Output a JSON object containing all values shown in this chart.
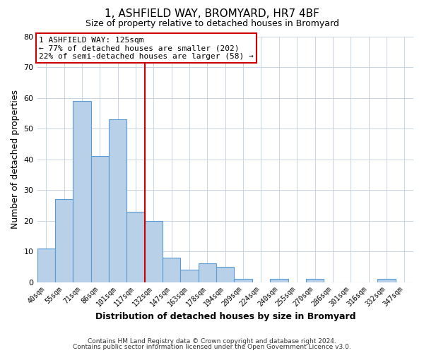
{
  "title": "1, ASHFIELD WAY, BROMYARD, HR7 4BF",
  "subtitle": "Size of property relative to detached houses in Bromyard",
  "xlabel": "Distribution of detached houses by size in Bromyard",
  "ylabel": "Number of detached properties",
  "bar_labels": [
    "40sqm",
    "55sqm",
    "71sqm",
    "86sqm",
    "101sqm",
    "117sqm",
    "132sqm",
    "147sqm",
    "163sqm",
    "178sqm",
    "194sqm",
    "209sqm",
    "224sqm",
    "240sqm",
    "255sqm",
    "270sqm",
    "286sqm",
    "301sqm",
    "316sqm",
    "332sqm",
    "347sqm"
  ],
  "bar_values": [
    11,
    27,
    59,
    41,
    53,
    23,
    20,
    8,
    4,
    6,
    5,
    1,
    0,
    1,
    0,
    1,
    0,
    0,
    0,
    1,
    0
  ],
  "bar_color": "#b8d0e8",
  "bar_edge_color": "#5b9bd5",
  "vline_color": "#cc0000",
  "annotation_box_line1": "1 ASHFIELD WAY: 125sqm",
  "annotation_box_line2": "← 77% of detached houses are smaller (202)",
  "annotation_box_line3": "22% of semi-detached houses are larger (58) →",
  "annotation_box_color": "#ffffff",
  "annotation_box_edge_color": "#cc0000",
  "ylim": [
    0,
    80
  ],
  "yticks": [
    0,
    10,
    20,
    30,
    40,
    50,
    60,
    70,
    80
  ],
  "footer_line1": "Contains HM Land Registry data © Crown copyright and database right 2024.",
  "footer_line2": "Contains public sector information licensed under the Open Government Licence v3.0.",
  "background_color": "#ffffff",
  "grid_color": "#c8d4e0",
  "title_fontsize": 11,
  "subtitle_fontsize": 9,
  "axis_label_fontsize": 9,
  "tick_fontsize": 7,
  "footer_fontsize": 6.5,
  "annot_fontsize": 8
}
